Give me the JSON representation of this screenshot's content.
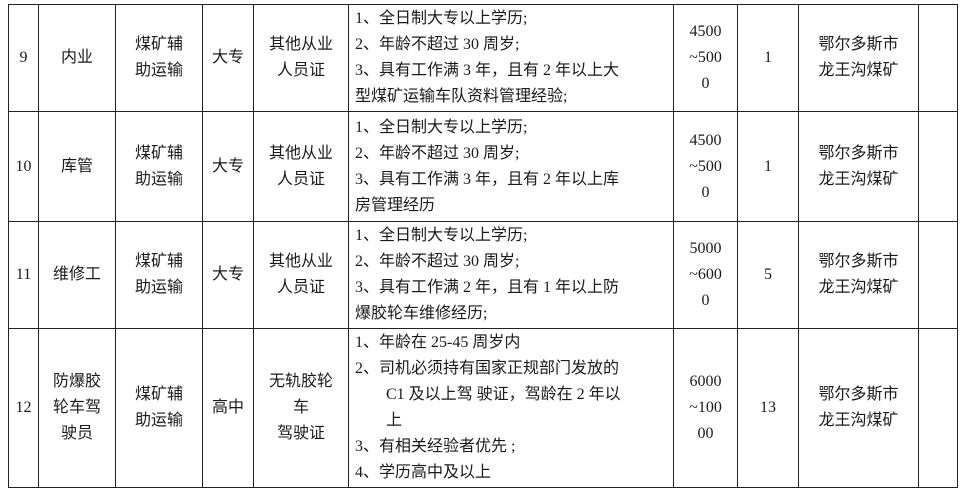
{
  "colors": {
    "background": "#ffffff",
    "border": "#222222",
    "text": "#1a1a1a"
  },
  "table": {
    "rows": [
      {
        "no": "9",
        "position": [
          "内业"
        ],
        "department": [
          "煤矿辅",
          "助运输"
        ],
        "education": [
          "大专"
        ],
        "certificate": [
          "其他从业",
          "人员证"
        ],
        "requirements": [
          {
            "text": "1、全日制大专以上学历;",
            "indent": false
          },
          {
            "text": "2、年龄不超过 30 周岁;",
            "indent": false
          },
          {
            "text": "3、具有工作满 3 年，且有 2 年以上大",
            "indent": false
          },
          {
            "text": "型煤矿运输车队资料管理经验;",
            "indent": false
          }
        ],
        "salary": "4500~5000",
        "salary_lines": [
          "4500",
          "~500",
          "0"
        ],
        "count": "1",
        "location": [
          "鄂尔多斯市",
          "龙王沟煤矿"
        ],
        "note": ""
      },
      {
        "no": "10",
        "position": [
          "库管"
        ],
        "department": [
          "煤矿辅",
          "助运输"
        ],
        "education": [
          "大专"
        ],
        "certificate": [
          "其他从业",
          "人员证"
        ],
        "requirements": [
          {
            "text": "1、全日制大专以上学历;",
            "indent": false
          },
          {
            "text": "2、年龄不超过 30 周岁;",
            "indent": false
          },
          {
            "text": "3、具有工作满 3 年，且有 2 年以上库",
            "indent": false
          },
          {
            "text": "房管理经历",
            "indent": false
          }
        ],
        "salary": "4500~5000",
        "salary_lines": [
          "4500",
          "~500",
          "0"
        ],
        "count": "1",
        "location": [
          "鄂尔多斯市",
          "龙王沟煤矿"
        ],
        "note": ""
      },
      {
        "no": "11",
        "position": [
          "维修工"
        ],
        "department": [
          "煤矿辅",
          "助运输"
        ],
        "education": [
          "大专"
        ],
        "certificate": [
          "其他从业",
          "人员证"
        ],
        "requirements": [
          {
            "text": "1、全日制大专以上学历;",
            "indent": false
          },
          {
            "text": "2、年龄不超过 30 周岁;",
            "indent": false
          },
          {
            "text": "3、具有工作满 2 年，且有 1 年以上防",
            "indent": false
          },
          {
            "text": "爆胶轮车维修经历;",
            "indent": false
          }
        ],
        "salary": "5000~6000",
        "salary_lines": [
          "5000",
          "~600",
          "0"
        ],
        "count": "5",
        "location": [
          "鄂尔多斯市",
          "龙王沟煤矿"
        ],
        "note": ""
      },
      {
        "no": "12",
        "position": [
          "防爆胶",
          "轮车驾",
          "驶员"
        ],
        "department": [
          "煤矿辅",
          "助运输"
        ],
        "education": [
          "高中"
        ],
        "certificate": [
          "无轨胶轮",
          "车",
          "驾驶证"
        ],
        "requirements": [
          {
            "text": "1、年龄在 25-45 周岁内",
            "indent": false
          },
          {
            "text": "2、司机必须持有国家正规部门发放的",
            "indent": false
          },
          {
            "text": "C1 及以上驾 驶证，驾龄在 2 年以",
            "indent": true
          },
          {
            "text": "上",
            "indent": true
          },
          {
            "text": "3、有相关经验者优先 ;",
            "indent": false
          },
          {
            "text": "4、学历高中及以上",
            "indent": false
          }
        ],
        "salary": "6000~10000",
        "salary_lines": [
          "6000",
          "~100",
          "00"
        ],
        "count": "13",
        "location": [
          "鄂尔多斯市",
          "龙王沟煤矿"
        ],
        "note": ""
      }
    ]
  }
}
